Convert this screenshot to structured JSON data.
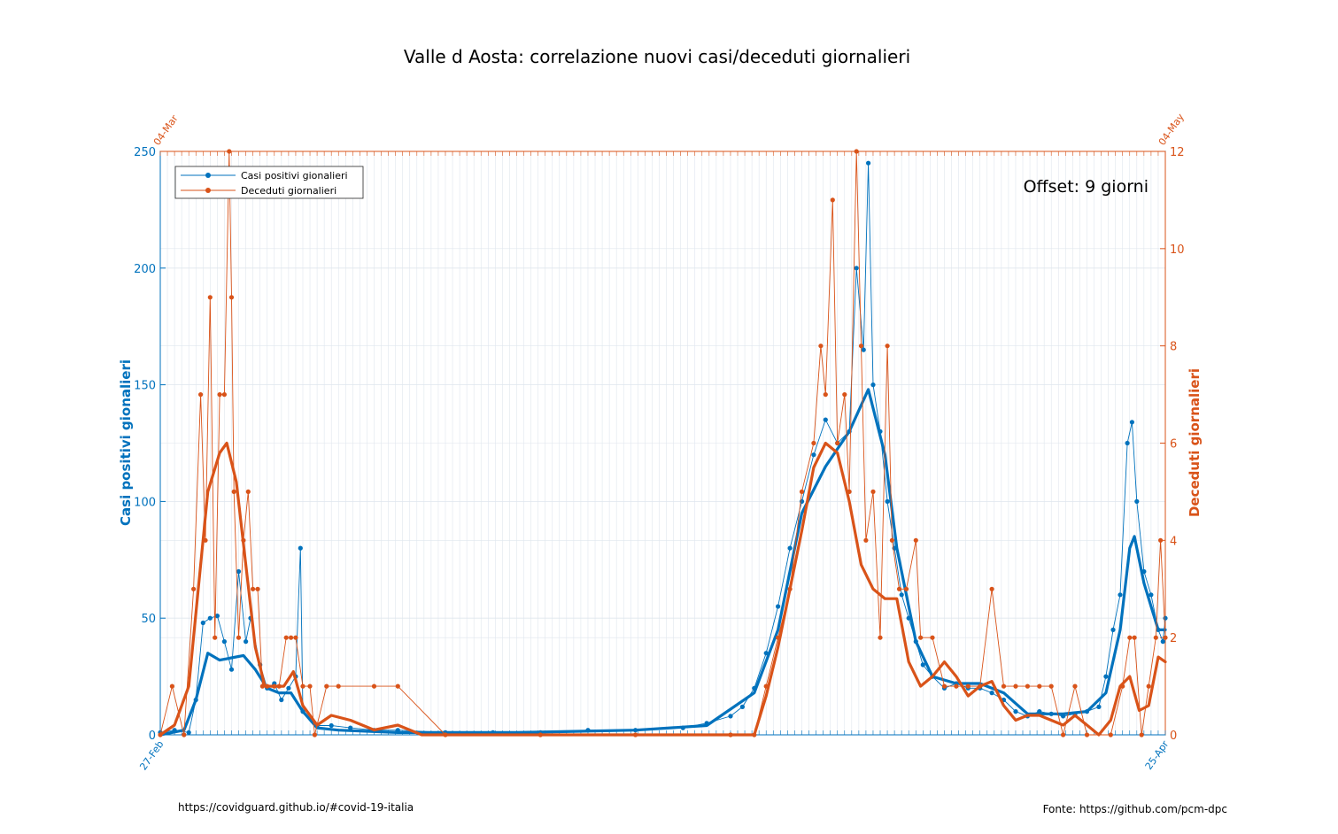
{
  "colors": {
    "cases": "#0072BD",
    "deaths": "#D95319",
    "grid": "#dfe6ee",
    "axis": "#262626"
  },
  "chart_data": {
    "type": "line",
    "title": "Valle d Aosta: correlazione nuovi casi/deceduti giornalieri",
    "ylabel_left": "Casi positivi gionalieri",
    "ylabel_right": "Deceduti giornalieri",
    "ylim_left": [
      0,
      250
    ],
    "ylim_right": [
      0,
      12
    ],
    "yticks_left": [
      0,
      50,
      100,
      150,
      200,
      250
    ],
    "yticks_right": [
      0,
      2,
      4,
      6,
      8,
      10,
      12
    ],
    "x_bottom_first": "27-Feb",
    "x_bottom_last": "25-Apr",
    "x_top_first": "04-Mar",
    "x_top_last": "04-May",
    "x_count": 424,
    "grid": true,
    "legend_location": "top-left",
    "annotation": "Offset: 9 giorni",
    "series": [
      {
        "name": "Casi positivi gionalieri",
        "axis": "left",
        "points": [
          [
            0,
            1
          ],
          [
            6,
            2
          ],
          [
            12,
            1
          ],
          [
            15,
            15
          ],
          [
            18,
            48
          ],
          [
            21,
            50
          ],
          [
            24,
            51
          ],
          [
            27,
            40
          ],
          [
            30,
            28
          ],
          [
            33,
            70
          ],
          [
            36,
            40
          ],
          [
            38,
            50
          ],
          [
            42,
            30
          ],
          [
            45,
            20
          ],
          [
            48,
            22
          ],
          [
            51,
            15
          ],
          [
            54,
            20
          ],
          [
            57,
            25
          ],
          [
            59,
            80
          ],
          [
            60,
            10
          ],
          [
            66,
            4
          ],
          [
            72,
            4
          ],
          [
            80,
            3
          ],
          [
            90,
            2
          ],
          [
            100,
            2
          ],
          [
            120,
            1
          ],
          [
            140,
            1
          ],
          [
            160,
            1
          ],
          [
            180,
            2
          ],
          [
            200,
            2
          ],
          [
            220,
            3
          ],
          [
            230,
            5
          ],
          [
            240,
            8
          ],
          [
            245,
            12
          ],
          [
            250,
            20
          ],
          [
            255,
            35
          ],
          [
            260,
            55
          ],
          [
            265,
            80
          ],
          [
            270,
            100
          ],
          [
            275,
            120
          ],
          [
            280,
            135
          ],
          [
            285,
            125
          ],
          [
            290,
            130
          ],
          [
            293,
            200
          ],
          [
            296,
            165
          ],
          [
            298,
            245
          ],
          [
            300,
            150
          ],
          [
            303,
            130
          ],
          [
            306,
            100
          ],
          [
            309,
            80
          ],
          [
            312,
            60
          ],
          [
            315,
            50
          ],
          [
            318,
            40
          ],
          [
            321,
            30
          ],
          [
            325,
            25
          ],
          [
            330,
            20
          ],
          [
            335,
            22
          ],
          [
            340,
            20
          ],
          [
            345,
            20
          ],
          [
            350,
            18
          ],
          [
            355,
            15
          ],
          [
            360,
            10
          ],
          [
            365,
            8
          ],
          [
            370,
            10
          ],
          [
            375,
            9
          ],
          [
            380,
            8
          ],
          [
            385,
            9
          ],
          [
            390,
            10
          ],
          [
            395,
            12
          ],
          [
            398,
            25
          ],
          [
            401,
            45
          ],
          [
            404,
            60
          ],
          [
            407,
            125
          ],
          [
            409,
            134
          ],
          [
            411,
            100
          ],
          [
            414,
            70
          ],
          [
            417,
            60
          ],
          [
            420,
            45
          ],
          [
            422,
            40
          ],
          [
            423,
            50
          ]
        ],
        "smooth": [
          [
            0,
            0
          ],
          [
            10,
            2
          ],
          [
            15,
            15
          ],
          [
            20,
            35
          ],
          [
            25,
            32
          ],
          [
            30,
            33
          ],
          [
            35,
            34
          ],
          [
            40,
            28
          ],
          [
            45,
            20
          ],
          [
            50,
            18
          ],
          [
            55,
            18
          ],
          [
            60,
            10
          ],
          [
            66,
            3
          ],
          [
            75,
            2
          ],
          [
            100,
            1
          ],
          [
            150,
            1
          ],
          [
            200,
            2
          ],
          [
            230,
            4
          ],
          [
            250,
            18
          ],
          [
            260,
            45
          ],
          [
            270,
            95
          ],
          [
            280,
            115
          ],
          [
            290,
            130
          ],
          [
            298,
            148
          ],
          [
            305,
            120
          ],
          [
            310,
            80
          ],
          [
            318,
            40
          ],
          [
            325,
            25
          ],
          [
            335,
            22
          ],
          [
            345,
            22
          ],
          [
            355,
            18
          ],
          [
            365,
            9
          ],
          [
            380,
            9
          ],
          [
            390,
            10
          ],
          [
            398,
            18
          ],
          [
            404,
            45
          ],
          [
            408,
            80
          ],
          [
            410,
            85
          ],
          [
            414,
            65
          ],
          [
            420,
            45
          ],
          [
            423,
            45
          ]
        ]
      },
      {
        "name": "Deceduti giornalieri",
        "axis": "right",
        "points": [
          [
            0,
            0
          ],
          [
            5,
            1
          ],
          [
            10,
            0
          ],
          [
            14,
            3
          ],
          [
            17,
            7
          ],
          [
            19,
            4
          ],
          [
            21,
            9
          ],
          [
            23,
            2
          ],
          [
            25,
            7
          ],
          [
            27,
            7
          ],
          [
            29,
            12
          ],
          [
            30,
            9
          ],
          [
            31,
            5
          ],
          [
            33,
            2
          ],
          [
            35,
            4
          ],
          [
            37,
            5
          ],
          [
            39,
            3
          ],
          [
            41,
            3
          ],
          [
            43,
            1
          ],
          [
            45,
            1
          ],
          [
            48,
            1
          ],
          [
            50,
            1
          ],
          [
            53,
            2
          ],
          [
            55,
            2
          ],
          [
            57,
            2
          ],
          [
            60,
            1
          ],
          [
            63,
            1
          ],
          [
            65,
            0
          ],
          [
            70,
            1
          ],
          [
            75,
            1
          ],
          [
            90,
            1
          ],
          [
            100,
            1
          ],
          [
            120,
            0
          ],
          [
            160,
            0
          ],
          [
            200,
            0
          ],
          [
            240,
            0
          ],
          [
            250,
            0
          ],
          [
            255,
            1
          ],
          [
            260,
            2
          ],
          [
            265,
            3
          ],
          [
            270,
            5
          ],
          [
            275,
            6
          ],
          [
            278,
            8
          ],
          [
            280,
            7
          ],
          [
            283,
            11
          ],
          [
            285,
            6
          ],
          [
            288,
            7
          ],
          [
            290,
            5
          ],
          [
            293,
            12
          ],
          [
            295,
            8
          ],
          [
            297,
            4
          ],
          [
            300,
            5
          ],
          [
            303,
            2
          ],
          [
            306,
            8
          ],
          [
            308,
            4
          ],
          [
            311,
            3
          ],
          [
            314,
            3
          ],
          [
            318,
            4
          ],
          [
            320,
            2
          ],
          [
            325,
            2
          ],
          [
            330,
            1
          ],
          [
            335,
            1
          ],
          [
            340,
            1
          ],
          [
            345,
            1
          ],
          [
            350,
            3
          ],
          [
            355,
            1
          ],
          [
            360,
            1
          ],
          [
            365,
            1
          ],
          [
            370,
            1
          ],
          [
            375,
            1
          ],
          [
            380,
            0
          ],
          [
            385,
            1
          ],
          [
            390,
            0
          ],
          [
            400,
            0
          ],
          [
            405,
            1
          ],
          [
            408,
            2
          ],
          [
            410,
            2
          ],
          [
            413,
            0
          ],
          [
            416,
            1
          ],
          [
            419,
            2
          ],
          [
            421,
            4
          ],
          [
            423,
            2
          ]
        ],
        "smooth": [
          [
            0,
            0
          ],
          [
            6,
            0.2
          ],
          [
            12,
            1
          ],
          [
            16,
            3
          ],
          [
            20,
            5
          ],
          [
            25,
            5.8
          ],
          [
            28,
            6
          ],
          [
            32,
            5.2
          ],
          [
            36,
            3.5
          ],
          [
            40,
            1.8
          ],
          [
            44,
            1
          ],
          [
            48,
            1
          ],
          [
            52,
            1
          ],
          [
            56,
            1.3
          ],
          [
            60,
            0.6
          ],
          [
            66,
            0.2
          ],
          [
            72,
            0.4
          ],
          [
            80,
            0.3
          ],
          [
            90,
            0.1
          ],
          [
            100,
            0.2
          ],
          [
            110,
            0
          ],
          [
            150,
            0
          ],
          [
            200,
            0
          ],
          [
            240,
            0
          ],
          [
            250,
            0
          ],
          [
            255,
            0.8
          ],
          [
            260,
            1.8
          ],
          [
            265,
            3
          ],
          [
            270,
            4.2
          ],
          [
            275,
            5.5
          ],
          [
            280,
            6
          ],
          [
            285,
            5.8
          ],
          [
            290,
            4.8
          ],
          [
            295,
            3.5
          ],
          [
            300,
            3
          ],
          [
            305,
            2.8
          ],
          [
            310,
            2.8
          ],
          [
            315,
            1.5
          ],
          [
            320,
            1
          ],
          [
            325,
            1.2
          ],
          [
            330,
            1.5
          ],
          [
            335,
            1.2
          ],
          [
            340,
            0.8
          ],
          [
            345,
            1
          ],
          [
            350,
            1.1
          ],
          [
            355,
            0.6
          ],
          [
            360,
            0.3
          ],
          [
            365,
            0.4
          ],
          [
            370,
            0.4
          ],
          [
            375,
            0.3
          ],
          [
            380,
            0.2
          ],
          [
            385,
            0.4
          ],
          [
            390,
            0.2
          ],
          [
            395,
            0
          ],
          [
            400,
            0.3
          ],
          [
            404,
            1
          ],
          [
            408,
            1.2
          ],
          [
            412,
            0.5
          ],
          [
            416,
            0.6
          ],
          [
            420,
            1.6
          ],
          [
            423,
            1.5
          ]
        ]
      }
    ]
  },
  "footer": {
    "left": "https://covidguard.github.io/#covid-19-italia",
    "right": "Fonte: https://github.com/pcm-dpc"
  }
}
